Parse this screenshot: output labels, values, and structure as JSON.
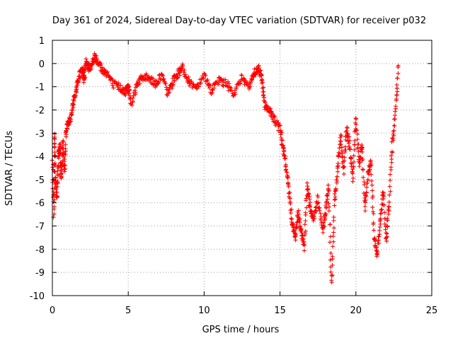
{
  "chart_data": {
    "type": "scatter",
    "title": "Day 361 of 2024, Sidereal Day-to-day VTEC variation (SDTVAR) for receiver p032",
    "xlabel": "GPS time / hours",
    "ylabel": "SDTVAR / TECUs",
    "xlim": [
      0,
      25
    ],
    "ylim": [
      -10,
      1
    ],
    "xticks": [
      0,
      5,
      10,
      15,
      20,
      25
    ],
    "xtick_labels": [
      "0",
      "5",
      "10",
      "15",
      "20",
      "25"
    ],
    "yticks": [
      1,
      0,
      -1,
      -2,
      -3,
      -4,
      -5,
      -6,
      -7,
      -8,
      -9,
      -10
    ],
    "ytick_labels": [
      "1",
      "0",
      "-1",
      "-2",
      "-3",
      "-4",
      "-5",
      "-6",
      "-7",
      "-8",
      "-9",
      "-10"
    ],
    "grid": true,
    "marker": "plus",
    "color": "#ff0000",
    "series": [
      {
        "name": "SDTVAR",
        "x": [
          0.0,
          0.1,
          0.15,
          0.2,
          0.3,
          0.4,
          0.5,
          0.6,
          0.7,
          0.8,
          0.9,
          1.0,
          1.2,
          1.4,
          1.6,
          1.8,
          2.0,
          2.1,
          2.2,
          2.4,
          2.6,
          2.8,
          3.0,
          3.3,
          3.6,
          4.0,
          4.4,
          4.8,
          5.0,
          5.2,
          5.6,
          6.0,
          6.4,
          6.8,
          7.2,
          7.6,
          8.0,
          8.3,
          8.6,
          9.0,
          9.5,
          10.0,
          10.5,
          11.0,
          11.5,
          12.0,
          12.5,
          13.0,
          13.3,
          13.6,
          13.8,
          14.0,
          14.3,
          14.6,
          15.0,
          15.2,
          15.4,
          15.6,
          15.8,
          16.0,
          16.2,
          16.4,
          16.6,
          16.8,
          17.0,
          17.2,
          17.5,
          17.8,
          18.0,
          18.2,
          18.4,
          18.6,
          18.8,
          19.0,
          19.2,
          19.4,
          19.6,
          19.8,
          20.0,
          20.2,
          20.4,
          20.6,
          20.8,
          21.0,
          21.2,
          21.4,
          21.6,
          21.8,
          22.0,
          22.2,
          22.4,
          22.6,
          22.8
        ],
        "values": [
          -4.2,
          -6.5,
          -3.0,
          -5.0,
          -5.8,
          -4.0,
          -3.5,
          -5.0,
          -3.3,
          -4.8,
          -3.0,
          -2.6,
          -2.4,
          -1.6,
          -1.0,
          -0.5,
          -0.3,
          -0.7,
          0.1,
          -0.2,
          0.0,
          0.3,
          0.1,
          -0.3,
          -0.4,
          -0.9,
          -1.0,
          -1.2,
          -1.0,
          -1.7,
          -0.8,
          -0.6,
          -0.6,
          -0.9,
          -0.5,
          -1.3,
          -0.7,
          -0.4,
          -0.2,
          -0.8,
          -1.0,
          -0.5,
          -1.2,
          -0.7,
          -0.9,
          -1.3,
          -0.6,
          -1.0,
          -0.4,
          -0.2,
          -0.6,
          -1.8,
          -2.0,
          -2.4,
          -2.8,
          -3.6,
          -4.5,
          -5.5,
          -6.8,
          -7.5,
          -6.5,
          -7.3,
          -7.9,
          -5.2,
          -6.3,
          -6.8,
          -5.8,
          -7.2,
          -6.5,
          -5.3,
          -9.5,
          -6.0,
          -4.5,
          -3.2,
          -4.6,
          -2.8,
          -3.6,
          -5.0,
          -2.3,
          -4.4,
          -3.5,
          -6.2,
          -4.8,
          -4.2,
          -7.5,
          -8.3,
          -6.8,
          -5.5,
          -7.6,
          -6.0,
          -3.5,
          -2.0,
          -0.1
        ]
      }
    ]
  }
}
